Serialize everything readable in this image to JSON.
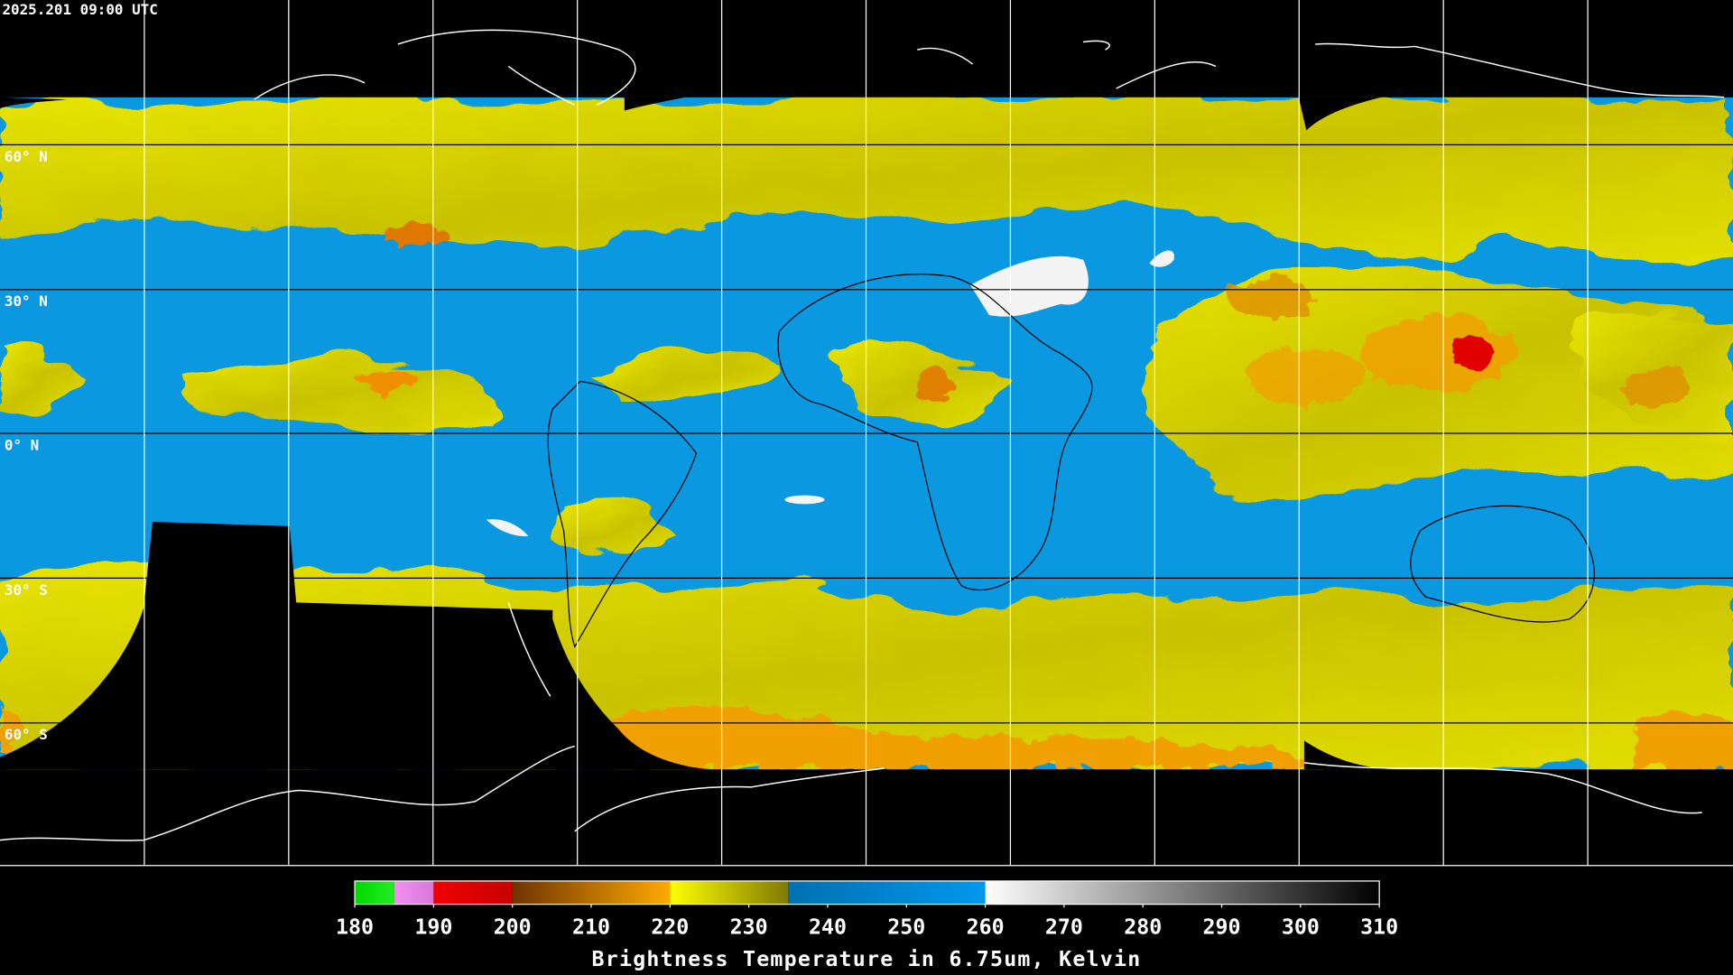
{
  "timestamp": "2025.201 09:00 UTC",
  "lat_labels": [
    "60° N",
    "30° N",
    "0° N",
    "30° S",
    "60° S"
  ],
  "colorbar": {
    "range": [
      180,
      310
    ],
    "ticks": [
      180,
      190,
      200,
      210,
      220,
      230,
      240,
      250,
      260,
      270,
      280,
      290,
      300,
      310
    ],
    "title": "Brightness Temperature in 6.75um, Kelvin",
    "segments": [
      {
        "from": 180,
        "to": 185,
        "colors": [
          "#00d800",
          "#22ee22"
        ]
      },
      {
        "from": 185,
        "to": 190,
        "colors": [
          "#f090f0",
          "#d878d8"
        ]
      },
      {
        "from": 190,
        "to": 200,
        "colors": [
          "#f00000",
          "#c80000"
        ]
      },
      {
        "from": 200,
        "to": 220,
        "colors": [
          "#6e3400",
          "#ffaa00"
        ]
      },
      {
        "from": 220,
        "to": 235,
        "colors": [
          "#ffff00",
          "#807a00"
        ]
      },
      {
        "from": 235,
        "to": 260,
        "colors": [
          "#0070b0",
          "#0098ee"
        ]
      },
      {
        "from": 260,
        "to": 310,
        "colors": [
          "#ffffff",
          "#000000"
        ]
      }
    ]
  }
}
